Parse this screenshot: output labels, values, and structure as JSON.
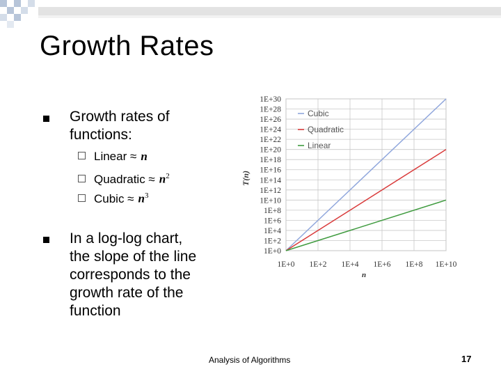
{
  "slide": {
    "title": "Growth Rates",
    "bullets": [
      {
        "text_lines": [
          "Growth rates of",
          "functions:"
        ],
        "sub": [
          {
            "label": "Linear ≈ ",
            "math": "n",
            "sup": ""
          },
          {
            "label": "Quadratic ≈ ",
            "math": "n",
            "sup": "2"
          },
          {
            "label": "Cubic ≈ ",
            "math": "n",
            "sup": "3"
          }
        ]
      },
      {
        "text_lines": [
          "In a log-log chart,",
          "the slope of the line",
          "corresponds to the",
          "growth rate of the",
          "function"
        ]
      }
    ],
    "footer": "Analysis of Algorithms",
    "page": "17"
  },
  "colors": {
    "cubic": "#8fa6dc",
    "quadratic": "#d93a3a",
    "linear": "#3f9b3f",
    "grid": "#c8c8c8",
    "checker": "#b7c5d9"
  },
  "chart_data": {
    "type": "line",
    "xlabel": "n",
    "ylabel": "T(n)",
    "x_scale": "log",
    "y_scale": "log",
    "xlim": [
      1,
      10000000000.0
    ],
    "ylim": [
      1,
      1e+30
    ],
    "x_ticks": [
      "1E+0",
      "1E+2",
      "1E+4",
      "1E+6",
      "1E+8",
      "1E+10"
    ],
    "y_ticks": [
      "1E+0",
      "1E+2",
      "1E+4",
      "1E+6",
      "1E+8",
      "1E+10",
      "1E+12",
      "1E+14",
      "1E+16",
      "1E+18",
      "1E+20",
      "1E+22",
      "1E+24",
      "1E+26",
      "1E+28",
      "1E+30"
    ],
    "grid": true,
    "legend_position": "top-left",
    "series": [
      {
        "name": "Cubic",
        "color": "#8fa6dc",
        "x": [
          1,
          10000000000.0
        ],
        "y": [
          1,
          1e+30
        ]
      },
      {
        "name": "Quadratic",
        "color": "#d93a3a",
        "x": [
          1,
          10000000000.0
        ],
        "y": [
          1,
          1e+20
        ]
      },
      {
        "name": "Linear",
        "color": "#3f9b3f",
        "x": [
          1,
          10000000000.0
        ],
        "y": [
          1,
          10000000000.0
        ]
      }
    ]
  }
}
